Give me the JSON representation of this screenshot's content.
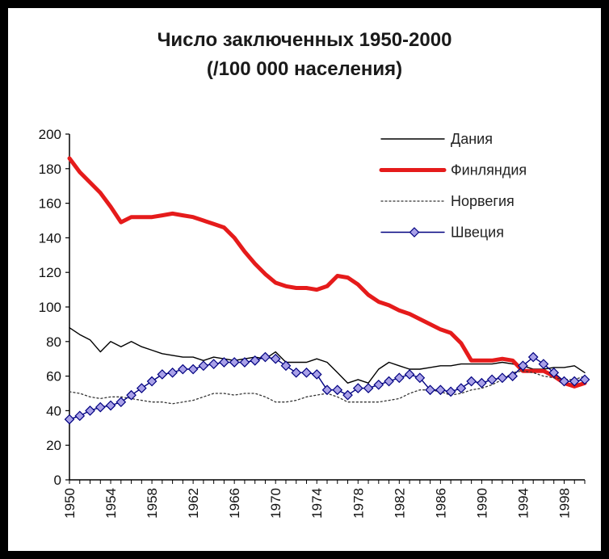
{
  "chart_data": {
    "type": "line",
    "title": "Число заключенных 1950-2000",
    "subtitle": "(/100 000 населения)",
    "xlabel": "",
    "ylabel": "",
    "ylim": [
      0,
      200
    ],
    "yticks": [
      0,
      20,
      40,
      60,
      80,
      100,
      120,
      140,
      160,
      180,
      200
    ],
    "xlim": [
      1950,
      2000
    ],
    "xticks": [
      1950,
      1954,
      1958,
      1962,
      1966,
      1970,
      1974,
      1978,
      1982,
      1986,
      1990,
      1994,
      1998
    ],
    "grid": false,
    "legend_position": "top-right",
    "x": [
      1950,
      1951,
      1952,
      1953,
      1954,
      1955,
      1956,
      1957,
      1958,
      1959,
      1960,
      1961,
      1962,
      1963,
      1964,
      1965,
      1966,
      1967,
      1968,
      1969,
      1970,
      1971,
      1972,
      1973,
      1974,
      1975,
      1976,
      1977,
      1978,
      1979,
      1980,
      1981,
      1982,
      1983,
      1984,
      1985,
      1986,
      1987,
      1988,
      1989,
      1990,
      1991,
      1992,
      1993,
      1994,
      1995,
      1996,
      1997,
      1998,
      1999,
      2000
    ],
    "series": [
      {
        "name": "Дания",
        "color": "#000000",
        "style": "solid-thin",
        "values": [
          88,
          84,
          81,
          74,
          80,
          77,
          80,
          77,
          75,
          73,
          72,
          71,
          71,
          69,
          71,
          70,
          69,
          70,
          71,
          70,
          74,
          68,
          68,
          68,
          70,
          68,
          62,
          56,
          58,
          56,
          64,
          68,
          66,
          64,
          64,
          65,
          66,
          66,
          67,
          67,
          67,
          67,
          68,
          67,
          66,
          64,
          64,
          65,
          65,
          66,
          62
        ]
      },
      {
        "name": "Финляндия",
        "color": "#e51b1b",
        "style": "solid-thick",
        "values": [
          186,
          178,
          172,
          166,
          158,
          149,
          152,
          152,
          152,
          153,
          154,
          153,
          152,
          150,
          148,
          146,
          140,
          132,
          125,
          119,
          114,
          112,
          111,
          111,
          110,
          112,
          118,
          117,
          113,
          107,
          103,
          101,
          98,
          96,
          93,
          90,
          87,
          85,
          79,
          69,
          69,
          69,
          70,
          69,
          63,
          63,
          63,
          60,
          56,
          54,
          56
        ]
      },
      {
        "name": "Норвегия",
        "color": "#333333",
        "style": "dotted",
        "values": [
          51,
          50,
          48,
          47,
          48,
          48,
          47,
          46,
          45,
          45,
          44,
          45,
          46,
          48,
          50,
          50,
          49,
          50,
          50,
          48,
          45,
          45,
          46,
          48,
          49,
          50,
          48,
          45,
          45,
          45,
          45,
          46,
          47,
          50,
          52,
          52,
          51,
          49,
          50,
          52,
          53,
          55,
          58,
          62,
          63,
          62,
          60,
          59,
          58,
          58,
          60
        ]
      },
      {
        "name": "Швеция",
        "color": "#000080",
        "marker": "diamond",
        "marker_fill": "#a9a1e8",
        "values": [
          35,
          37,
          40,
          42,
          43,
          45,
          49,
          53,
          57,
          61,
          62,
          64,
          64,
          66,
          67,
          68,
          68,
          68,
          69,
          71,
          70,
          66,
          62,
          62,
          61,
          52,
          52,
          49,
          53,
          53,
          55,
          57,
          59,
          61,
          59,
          52,
          52,
          51,
          53,
          57,
          56,
          58,
          59,
          60,
          66,
          71,
          67,
          62,
          57,
          57,
          58
        ]
      }
    ]
  }
}
